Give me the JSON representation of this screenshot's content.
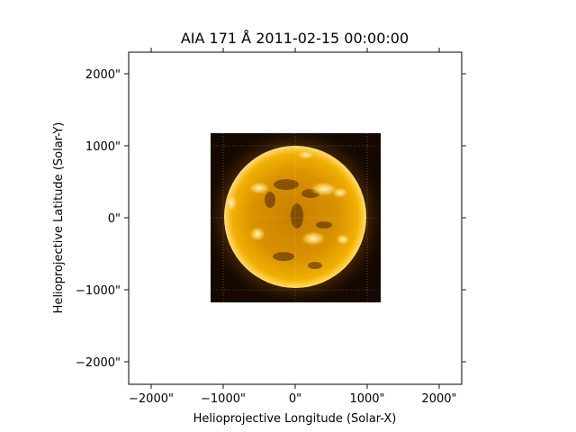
{
  "figure": {
    "title": "AIA 171 Å 2011-02-15 00:00:00",
    "xlabel": "Helioprojective Longitude (Solar-X)",
    "ylabel": "Helioprojective Latitude (Solar-Y)"
  },
  "axes": {
    "xlim": [
      -2300,
      2300
    ],
    "ylim": [
      -2300,
      2300
    ],
    "ticks": [
      -2000,
      -1000,
      0,
      1000,
      2000
    ],
    "x_tick_labels": [
      "−2000\"",
      "−1000\"",
      "0\"",
      "1000\"",
      "2000\""
    ],
    "y_tick_labels": [
      "−2000\"",
      "−1000\"",
      "0\"",
      "1000\"",
      "2000\""
    ],
    "grid": "coordinate grid (dotted) over image"
  },
  "image": {
    "extent_x": [
      -1190,
      1190
    ],
    "extent_y": [
      -1190,
      1190
    ],
    "solar_radius_arcsec": 975,
    "colormap": "sdoaia171",
    "colors": {
      "background": "#140800",
      "disk_center": "#e6a000",
      "disk_mid": "#c88400",
      "limb": "#ffcf40",
      "corona": "#7a4a00",
      "bright_region": "#fff3b0",
      "dark_filament": "#3a1d00"
    }
  }
}
